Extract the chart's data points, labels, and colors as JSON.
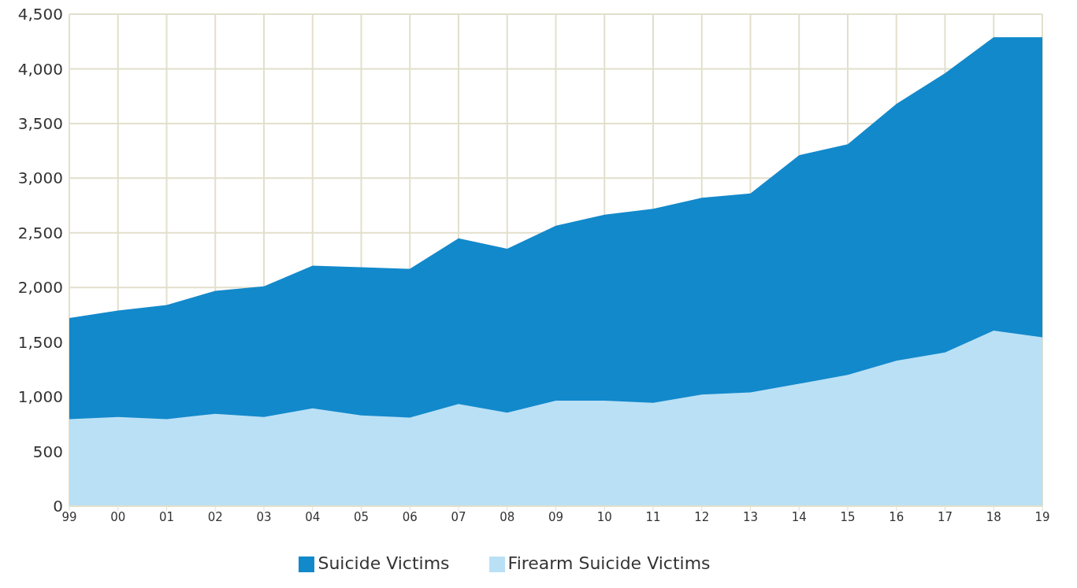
{
  "chart_data": {
    "type": "area",
    "categories": [
      "99",
      "00",
      "01",
      "02",
      "03",
      "04",
      "05",
      "06",
      "07",
      "08",
      "09",
      "10",
      "11",
      "12",
      "13",
      "14",
      "15",
      "16",
      "17",
      "18",
      "19"
    ],
    "series": [
      {
        "name": "Suicide Victims",
        "color": "#1289cb",
        "values": [
          1720,
          1790,
          1840,
          1970,
          2010,
          2200,
          2185,
          2170,
          2450,
          2355,
          2565,
          2665,
          2720,
          2820,
          2860,
          3210,
          3310,
          3680,
          3960,
          4290,
          4290
        ]
      },
      {
        "name": "Firearm Suicide Victims",
        "color": "#bae0f5",
        "values": [
          795,
          815,
          795,
          845,
          815,
          895,
          830,
          810,
          935,
          855,
          965,
          965,
          945,
          1020,
          1040,
          1120,
          1200,
          1330,
          1405,
          1605,
          1545
        ]
      }
    ],
    "ylim": [
      0,
      4500
    ],
    "yticks": [
      {
        "value": 0,
        "label": "0"
      },
      {
        "value": 500,
        "label": "500"
      },
      {
        "value": 1000,
        "label": "1,000"
      },
      {
        "value": 1500,
        "label": "1,500"
      },
      {
        "value": 2000,
        "label": "2,000"
      },
      {
        "value": 2500,
        "label": "2,500"
      },
      {
        "value": 3000,
        "label": "3,000"
      },
      {
        "value": 3500,
        "label": "3,500"
      },
      {
        "value": 4000,
        "label": "4,000"
      },
      {
        "value": 4500,
        "label": "4,500"
      }
    ],
    "grid": true,
    "legend": "bottom"
  }
}
